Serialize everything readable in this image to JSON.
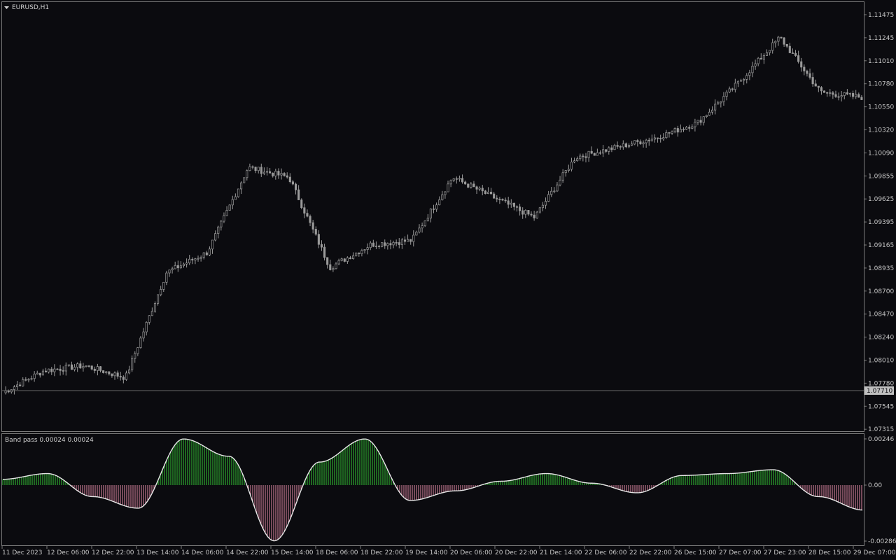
{
  "main_pane": {
    "title": "EURUSD,H1",
    "current_price_label": "1.07710",
    "price_ticks": [
      "1.11475",
      "1.11245",
      "1.11010",
      "1.10780",
      "1.10550",
      "1.10320",
      "1.10090",
      "1.09855",
      "1.09625",
      "1.09395",
      "1.09165",
      "1.08935",
      "1.08700",
      "1.08470",
      "1.08240",
      "1.08010",
      "1.07780",
      "1.07545",
      "1.07315"
    ]
  },
  "indicator_pane": {
    "title": "Band pass  0.00024 0.00024",
    "value_ticks": [
      "0.00246",
      "0.00",
      "-0.00286"
    ]
  },
  "time_axis": {
    "labels": [
      "11 Dec 2023",
      "12 Dec 06:00",
      "12 Dec 22:00",
      "13 Dec 14:00",
      "14 Dec 06:00",
      "14 Dec 22:00",
      "15 Dec 14:00",
      "18 Dec 06:00",
      "18 Dec 22:00",
      "19 Dec 14:00",
      "20 Dec 06:00",
      "20 Dec 22:00",
      "21 Dec 14:00",
      "22 Dec 06:00",
      "22 Dec 22:00",
      "26 Dec 15:00",
      "27 Dec 07:00",
      "27 Dec 23:00",
      "28 Dec 15:00",
      "29 Dec 07:00"
    ]
  },
  "colors": {
    "background": "#0b0b0f",
    "candle": "#9a9a9a",
    "axis_text": "#c8c8c8",
    "positive_bar": "#33c333",
    "negative_bar": "#e28aa4",
    "band_line": "#e6e6e6",
    "current_price_line": "#6a6a6a",
    "current_price_tag": "#c0c0c0"
  },
  "chart_data": [
    {
      "type": "candlestick",
      "title": "EURUSD,H1",
      "ylim": [
        1.0725,
        1.1158
      ],
      "approx_close_path": [
        [
          "11 Dec 2023",
          1.077
        ],
        [
          "12 Dec 06:00",
          1.0792
        ],
        [
          "12 Dec 22:00",
          1.0797
        ],
        [
          "13 Dec 14:00",
          1.0785
        ],
        [
          "13 Dec 20:00",
          1.089
        ],
        [
          "14 Dec 06:00",
          1.091
        ],
        [
          "14 Dec 10:00",
          1.0995
        ],
        [
          "14 Dec 22:00",
          1.0985
        ],
        [
          "15 Dec 10:00",
          1.0895
        ],
        [
          "18 Dec 06:00",
          1.0918
        ],
        [
          "18 Dec 22:00",
          1.0922
        ],
        [
          "19 Dec 14:00",
          1.0985
        ],
        [
          "20 Dec 06:00",
          1.0965
        ],
        [
          "20 Dec 22:00",
          1.0945
        ],
        [
          "21 Dec 14:00",
          1.1005
        ],
        [
          "22 Dec 06:00",
          1.1015
        ],
        [
          "22 Dec 22:00",
          1.1025
        ],
        [
          "26 Dec 15:00",
          1.104
        ],
        [
          "27 Dec 07:00",
          1.108
        ],
        [
          "27 Dec 23:00",
          1.1125
        ],
        [
          "28 Dec 15:00",
          1.107
        ],
        [
          "29 Dec 07:00",
          1.1065
        ]
      ]
    },
    {
      "type": "histogram",
      "title": "Band pass",
      "ylim": [
        -0.00286,
        0.00246
      ],
      "approx_values": [
        [
          "11 Dec 2023",
          0.0003
        ],
        [
          "12 Dec 06:00",
          0.0006
        ],
        [
          "12 Dec 22:00",
          -0.0006
        ],
        [
          "13 Dec 14:00",
          -0.0012
        ],
        [
          "14 Dec 06:00",
          0.0024
        ],
        [
          "14 Dec 22:00",
          0.0015
        ],
        [
          "15 Dec 14:00",
          -0.0029
        ],
        [
          "18 Dec 06:00",
          0.0012
        ],
        [
          "18 Dec 22:00",
          0.0024
        ],
        [
          "19 Dec 14:00",
          -0.0008
        ],
        [
          "20 Dec 06:00",
          -0.0003
        ],
        [
          "20 Dec 22:00",
          0.0002
        ],
        [
          "21 Dec 14:00",
          0.0006
        ],
        [
          "22 Dec 06:00",
          0.0001
        ],
        [
          "22 Dec 22:00",
          -0.0004
        ],
        [
          "26 Dec 15:00",
          0.0005
        ],
        [
          "27 Dec 07:00",
          0.0006
        ],
        [
          "27 Dec 23:00",
          0.0008
        ],
        [
          "28 Dec 15:00",
          -0.0006
        ],
        [
          "29 Dec 07:00",
          -0.0013
        ]
      ]
    }
  ]
}
